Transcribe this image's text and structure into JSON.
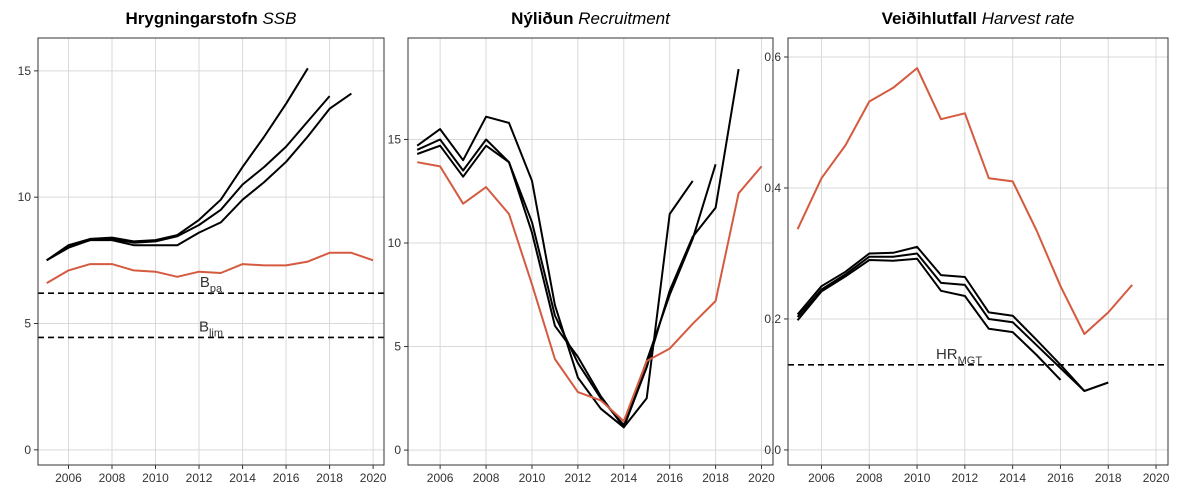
{
  "chart_data": [
    {
      "type": "line",
      "title": {
        "main": "Hrygningarstofn",
        "sub": "SSB"
      },
      "x": [
        2005,
        2006,
        2007,
        2008,
        2009,
        2010,
        2011,
        2012,
        2013,
        2014,
        2015,
        2016,
        2017,
        2018,
        2019,
        2020
      ],
      "xlim": [
        2004.6,
        2020.5
      ],
      "xticks": [
        2006,
        2008,
        2010,
        2012,
        2014,
        2016,
        2018,
        2020
      ],
      "ylim": [
        -0.6,
        16.3
      ],
      "yticks": [
        0,
        5,
        10,
        15
      ],
      "grid": true,
      "series": [
        {
          "color": "#000000",
          "values": [
            7.5,
            8.1,
            8.35,
            8.4,
            8.25,
            8.3,
            8.5,
            9.1,
            9.9,
            11.2,
            12.4,
            13.7,
            15.1,
            null,
            null,
            null
          ]
        },
        {
          "color": "#000000",
          "values": [
            7.5,
            8.05,
            8.3,
            8.35,
            8.2,
            8.25,
            8.45,
            8.9,
            9.5,
            10.5,
            11.2,
            12.0,
            13.0,
            14.0,
            null,
            null
          ]
        },
        {
          "color": "#000000",
          "values": [
            7.5,
            8.0,
            8.3,
            8.3,
            8.1,
            8.1,
            8.1,
            8.6,
            9.0,
            9.9,
            10.6,
            11.4,
            12.4,
            13.5,
            14.1,
            null
          ]
        },
        {
          "color": "#d45a40",
          "values": [
            6.6,
            7.1,
            7.35,
            7.35,
            7.1,
            7.05,
            6.85,
            7.05,
            7.0,
            7.35,
            7.3,
            7.3,
            7.45,
            7.8,
            7.8,
            7.5
          ]
        }
      ],
      "hlines": [
        {
          "value": 6.2,
          "label": "B",
          "sub": "pa"
        },
        {
          "value": 4.45,
          "label": "B",
          "sub": "lim"
        }
      ]
    },
    {
      "type": "line",
      "title": {
        "main": "Nýliðun",
        "sub": "Recruitment"
      },
      "x": [
        2005,
        2006,
        2007,
        2008,
        2009,
        2010,
        2011,
        2012,
        2013,
        2014,
        2015,
        2016,
        2017,
        2018,
        2019,
        2020
      ],
      "xlim": [
        2004.6,
        2020.5
      ],
      "xticks": [
        2006,
        2008,
        2010,
        2012,
        2014,
        2016,
        2018,
        2020
      ],
      "ylim": [
        -0.72,
        19.9
      ],
      "yticks": [
        0,
        5,
        10,
        15
      ],
      "grid": true,
      "series": [
        {
          "color": "#000000",
          "values": [
            14.7,
            15.5,
            14.0,
            16.1,
            15.8,
            13.0,
            7.0,
            3.5,
            2.0,
            1.1,
            2.5,
            11.4,
            13.0,
            null,
            null,
            null
          ]
        },
        {
          "color": "#000000",
          "values": [
            14.5,
            15.0,
            13.5,
            15.0,
            13.9,
            11.0,
            6.5,
            4.2,
            2.5,
            1.2,
            4.3,
            7.5,
            10.2,
            13.8,
            null,
            null
          ]
        },
        {
          "color": "#000000",
          "values": [
            14.3,
            14.7,
            13.2,
            14.7,
            13.9,
            10.5,
            6.0,
            4.5,
            2.6,
            1.1,
            4.0,
            7.7,
            10.3,
            11.7,
            18.4,
            null
          ]
        },
        {
          "color": "#d45a40",
          "values": [
            13.9,
            13.7,
            11.9,
            12.7,
            11.4,
            8.0,
            4.4,
            2.8,
            2.4,
            1.4,
            4.3,
            4.9,
            6.1,
            7.2,
            12.4,
            13.7
          ]
        }
      ],
      "hlines": []
    },
    {
      "type": "line",
      "title": {
        "main": "Veiðihlutfall",
        "sub": "Harvest rate"
      },
      "x": [
        2005,
        2006,
        2007,
        2008,
        2009,
        2010,
        2011,
        2012,
        2013,
        2014,
        2015,
        2016,
        2017,
        2018,
        2019,
        2020
      ],
      "xlim": [
        2004.6,
        2020.5
      ],
      "xticks": [
        2006,
        2008,
        2010,
        2012,
        2014,
        2016,
        2018,
        2020
      ],
      "ylim": [
        -0.023,
        0.629
      ],
      "yticks": [
        {
          "value": 0,
          "label": "0.0"
        },
        {
          "value": 0.2,
          "label": "0.2"
        },
        {
          "value": 0.4,
          "label": "0.4"
        },
        {
          "value": 0.6,
          "label": "0.6"
        }
      ],
      "grid": true,
      "series": [
        {
          "color": "#000000",
          "values": [
            0.198,
            0.242,
            0.265,
            0.29,
            0.289,
            0.292,
            0.243,
            0.235,
            0.185,
            0.18,
            0.145,
            0.107,
            null,
            null,
            null,
            null
          ]
        },
        {
          "color": "#000000",
          "values": [
            0.203,
            0.245,
            0.268,
            0.295,
            0.295,
            0.3,
            0.255,
            0.252,
            0.2,
            0.195,
            0.16,
            0.125,
            0.09,
            null,
            null,
            null
          ]
        },
        {
          "color": "#000000",
          "values": [
            0.207,
            0.25,
            0.272,
            0.3,
            0.301,
            0.31,
            0.267,
            0.264,
            0.21,
            0.205,
            0.168,
            0.13,
            0.09,
            0.103,
            null,
            null
          ]
        },
        {
          "color": "#d45a40",
          "values": [
            0.337,
            0.415,
            0.465,
            0.532,
            0.553,
            0.583,
            0.505,
            0.514,
            0.415,
            0.41,
            0.335,
            0.25,
            0.177,
            0.21,
            0.252,
            null
          ]
        }
      ],
      "hlines": [
        {
          "value": 0.13,
          "label": "HR",
          "sub": "MGT"
        }
      ]
    }
  ]
}
